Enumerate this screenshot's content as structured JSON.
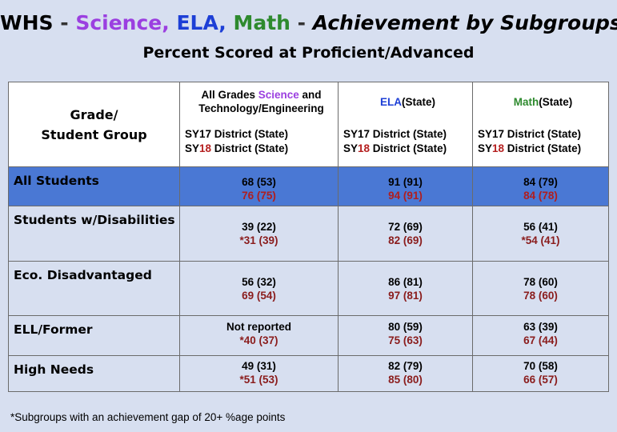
{
  "title": {
    "school": "WHS",
    "dash1": " - ",
    "science": "Science,",
    "ela": " ELA,",
    "math": " Math",
    "dash2": " - ",
    "rest": "Achievement by Subgroups"
  },
  "subtitle": "Percent Scored at Proficient/Advanced",
  "header": {
    "group_line1": "Grade/",
    "group_line2": "Student Group",
    "columns": [
      {
        "prefix": "All Grades ",
        "subject": "Science",
        "suffix": " and",
        "line2": "Technology/Engineering",
        "subject_class": "c-sci"
      },
      {
        "prefix": "",
        "subject": "ELA",
        "suffix": "(State)",
        "line2": "",
        "subject_class": "c-ela"
      },
      {
        "prefix": "",
        "subject": "Math",
        "suffix": "(State)",
        "line2": "",
        "subject_class": "c-math"
      }
    ],
    "sy17_a": "SY17 ",
    "sy17_b": "District",
    "sy17_c": " (State)",
    "sy18_a": "SY",
    "sy18_num": "18",
    "sy18_b": " District",
    "sy18_c": " (State)"
  },
  "rows": [
    {
      "label": "All Students",
      "values": [
        [
          "68 (53)",
          "76 (75)"
        ],
        [
          "91 (91)",
          "94 (91)"
        ],
        [
          "84 (79)",
          "84 (78)"
        ]
      ]
    },
    {
      "label": "Students w/Disabilities",
      "values": [
        [
          "39 (22)",
          "*31 (39)"
        ],
        [
          "72 (69)",
          "82 (69)"
        ],
        [
          "56 (41)",
          "*54 (41)"
        ]
      ]
    },
    {
      "label": "Eco. Disadvantaged",
      "values": [
        [
          "56 (32)",
          "69 (54)"
        ],
        [
          "86 (81)",
          "97 (81)"
        ],
        [
          "78 (60)",
          "78 (60)"
        ]
      ]
    },
    {
      "label": "ELL/Former",
      "values": [
        [
          "Not reported",
          "*40 (37)"
        ],
        [
          "80 (59)",
          "75 (63)"
        ],
        [
          "63 (39)",
          "67 (44)"
        ]
      ]
    },
    {
      "label": "High Needs",
      "values": [
        [
          "49 (31)",
          "*51 (53)"
        ],
        [
          "82 (79)",
          "85 (80)"
        ],
        [
          "70 (58)",
          "66 (57)"
        ]
      ]
    }
  ],
  "footnote": "*Subgroups with an achievement gap of 20+ %age points"
}
